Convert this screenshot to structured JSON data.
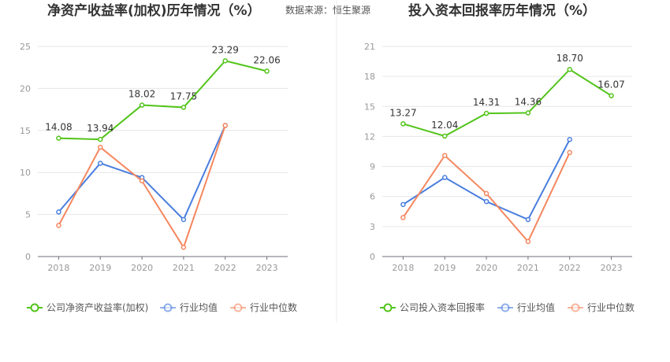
{
  "source_text": "数据来源：恒生聚源",
  "chart_data": [
    {
      "type": "line",
      "title": "净资产收益率(加权)历年情况（%）",
      "categories": [
        "2018",
        "2019",
        "2020",
        "2021",
        "2022",
        "2023"
      ],
      "ylim": [
        0,
        25
      ],
      "yticks": [
        0,
        5,
        10,
        15,
        20,
        25
      ],
      "grid": true,
      "legend_position": "bottom-left",
      "series": [
        {
          "name": "公司净资产收益率(加权)",
          "color": "#52c41a",
          "values": [
            14.08,
            13.94,
            18.02,
            17.75,
            23.29,
            22.06
          ],
          "labels": [
            "14.08",
            "13.94",
            "18.02",
            "17.75",
            "23.29",
            "22.06"
          ]
        },
        {
          "name": "行业均值",
          "color": "#4a7ede",
          "values": [
            5.3,
            11.1,
            9.4,
            4.4,
            15.6,
            null
          ]
        },
        {
          "name": "行业中位数",
          "color": "#f5875f",
          "values": [
            3.7,
            13.0,
            9.0,
            1.1,
            15.6,
            null
          ]
        }
      ]
    },
    {
      "type": "line",
      "title": "投入资本回报率历年情况（%）",
      "categories": [
        "2018",
        "2019",
        "2020",
        "2021",
        "2022",
        "2023"
      ],
      "ylim": [
        0,
        21
      ],
      "yticks": [
        0,
        3,
        6,
        9,
        12,
        15,
        18,
        21
      ],
      "grid": true,
      "legend_position": "bottom-left",
      "series": [
        {
          "name": "公司投入资本回报率",
          "color": "#52c41a",
          "values": [
            13.27,
            12.04,
            14.31,
            14.36,
            18.7,
            16.07
          ],
          "labels": [
            "13.27",
            "12.04",
            "14.31",
            "14.36",
            "18.70",
            "16.07"
          ]
        },
        {
          "name": "行业均值",
          "color": "#4a7ede",
          "values": [
            5.2,
            7.9,
            5.5,
            3.7,
            11.7,
            null
          ]
        },
        {
          "name": "行业中位数",
          "color": "#f5875f",
          "values": [
            3.9,
            10.1,
            6.3,
            1.5,
            10.4,
            null
          ]
        }
      ]
    }
  ]
}
